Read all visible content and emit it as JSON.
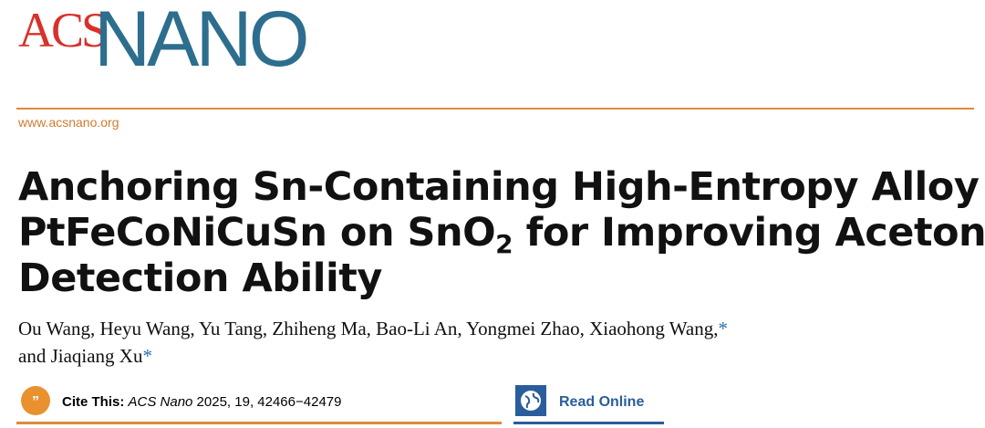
{
  "logo": {
    "acs": "ACS",
    "nano": "NANO"
  },
  "url": "www.acsnano.org",
  "title": {
    "line1": "Anchoring Sn-Containing High-Entropy Alloy",
    "line2_a": "PtFeCoNiCuSn on SnO",
    "line2_sub": "2",
    "line2_b": " for Improving Acetone",
    "line3": "Detection Ability"
  },
  "authors": {
    "line1": "Ou Wang, Heyu Wang, Yu Tang, Zhiheng Ma, Bao-Li An, Yongmei Zhao, Xiaohong Wang,",
    "mark1": "*",
    "line2": "and Jiaqiang Xu",
    "mark2": "*"
  },
  "cite": {
    "label": "Cite This:",
    "journal": "ACS Nano",
    "details": " 2025, 19, 42466−42479"
  },
  "read_online": "Read Online"
}
